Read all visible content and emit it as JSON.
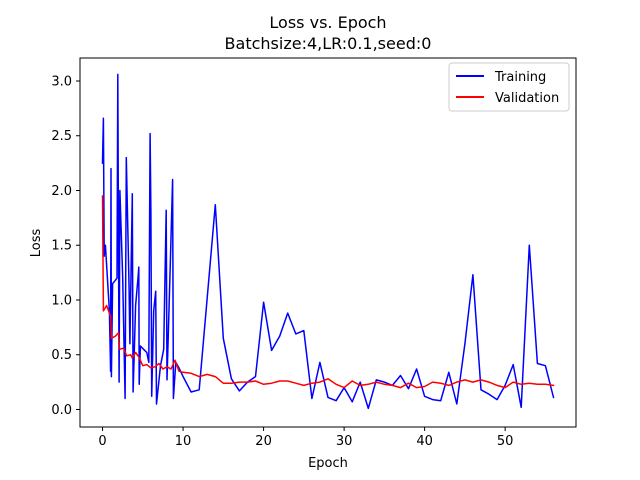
{
  "chart_data": {
    "type": "line",
    "title_line1": "Loss vs. Epoch",
    "title_line2": "Batchsize:4,LR:0.1,seed:0",
    "xlabel": "Epoch",
    "ylabel": "Loss",
    "xlim": [
      -2.8,
      58.8
    ],
    "ylim": [
      -0.16,
      3.21
    ],
    "x_ticks": [
      0,
      10,
      20,
      30,
      40,
      50
    ],
    "y_ticks": [
      0.0,
      0.5,
      1.0,
      1.5,
      2.0,
      2.5,
      3.0
    ],
    "grid": false,
    "legend_position": "top-right",
    "series": [
      {
        "name": "Training",
        "color": "#0000ff",
        "points": [
          [
            0.0,
            2.25
          ],
          [
            0.1,
            2.66
          ],
          [
            0.2,
            1.4
          ],
          [
            0.35,
            1.5
          ],
          [
            0.6,
            1.2
          ],
          [
            0.85,
            0.9
          ],
          [
            1.0,
            0.35
          ],
          [
            1.05,
            2.2
          ],
          [
            1.1,
            0.3
          ],
          [
            1.25,
            1.15
          ],
          [
            1.6,
            1.18
          ],
          [
            1.8,
            1.2
          ],
          [
            1.9,
            3.06
          ],
          [
            2.05,
            0.25
          ],
          [
            2.15,
            2.0
          ],
          [
            2.5,
            1.2
          ],
          [
            2.8,
            0.1
          ],
          [
            2.95,
            2.3
          ],
          [
            3.3,
            1.1
          ],
          [
            3.4,
            0.6
          ],
          [
            3.7,
            1.97
          ],
          [
            3.8,
            0.16
          ],
          [
            4.1,
            0.95
          ],
          [
            4.4,
            1.2
          ],
          [
            4.5,
            1.3
          ],
          [
            4.55,
            0.23
          ],
          [
            4.7,
            0.58
          ],
          [
            5.1,
            0.55
          ],
          [
            5.5,
            0.52
          ],
          [
            5.75,
            0.43
          ],
          [
            5.9,
            2.52
          ],
          [
            6.0,
            1.8
          ],
          [
            6.1,
            0.12
          ],
          [
            6.35,
            0.9
          ],
          [
            6.6,
            1.08
          ],
          [
            6.7,
            0.05
          ],
          [
            7.2,
            0.4
          ],
          [
            7.6,
            0.55
          ],
          [
            7.9,
            1.82
          ],
          [
            8.0,
            0.27
          ],
          [
            8.4,
            1.3
          ],
          [
            8.7,
            2.1
          ],
          [
            8.8,
            0.1
          ],
          [
            9.1,
            0.43
          ],
          [
            9.5,
            0.38
          ],
          [
            10.0,
            0.3
          ],
          [
            11.0,
            0.16
          ],
          [
            12.0,
            0.18
          ],
          [
            14.0,
            1.87
          ],
          [
            15.0,
            0.65
          ],
          [
            16.0,
            0.28
          ],
          [
            17.0,
            0.17
          ],
          [
            18.0,
            0.25
          ],
          [
            19.0,
            0.3
          ],
          [
            20.0,
            0.98
          ],
          [
            21.0,
            0.54
          ],
          [
            22.0,
            0.67
          ],
          [
            23.0,
            0.88
          ],
          [
            24.0,
            0.69
          ],
          [
            25.0,
            0.72
          ],
          [
            26.0,
            0.1
          ],
          [
            27.0,
            0.43
          ],
          [
            28.0,
            0.11
          ],
          [
            29.0,
            0.08
          ],
          [
            30.0,
            0.2
          ],
          [
            31.0,
            0.07
          ],
          [
            32.0,
            0.25
          ],
          [
            33.0,
            0.01
          ],
          [
            34.0,
            0.27
          ],
          [
            35.0,
            0.25
          ],
          [
            36.0,
            0.22
          ],
          [
            37.0,
            0.31
          ],
          [
            38.0,
            0.19
          ],
          [
            39.0,
            0.37
          ],
          [
            40.0,
            0.12
          ],
          [
            41.0,
            0.09
          ],
          [
            42.0,
            0.08
          ],
          [
            43.0,
            0.34
          ],
          [
            44.0,
            0.05
          ],
          [
            45.0,
            0.6
          ],
          [
            46.0,
            1.23
          ],
          [
            47.0,
            0.18
          ],
          [
            48.0,
            0.14
          ],
          [
            49.0,
            0.09
          ],
          [
            50.0,
            0.22
          ],
          [
            51.0,
            0.41
          ],
          [
            52.0,
            0.02
          ],
          [
            53.0,
            1.5
          ],
          [
            54.0,
            0.42
          ],
          [
            55.0,
            0.4
          ],
          [
            56.0,
            0.11
          ]
        ]
      },
      {
        "name": "Validation",
        "color": "#ff0000",
        "points": [
          [
            0.0,
            1.95
          ],
          [
            0.1,
            0.9
          ],
          [
            0.5,
            0.95
          ],
          [
            1.0,
            0.85
          ],
          [
            1.1,
            0.65
          ],
          [
            1.6,
            0.67
          ],
          [
            2.0,
            0.7
          ],
          [
            2.1,
            0.55
          ],
          [
            2.6,
            0.56
          ],
          [
            3.0,
            0.49
          ],
          [
            3.5,
            0.5
          ],
          [
            3.7,
            0.47
          ],
          [
            4.1,
            0.52
          ],
          [
            4.5,
            0.48
          ],
          [
            5.0,
            0.4
          ],
          [
            5.5,
            0.41
          ],
          [
            6.0,
            0.38
          ],
          [
            6.5,
            0.39
          ],
          [
            7.0,
            0.42
          ],
          [
            7.5,
            0.37
          ],
          [
            8.0,
            0.39
          ],
          [
            8.5,
            0.37
          ],
          [
            9.0,
            0.45
          ],
          [
            9.5,
            0.35
          ],
          [
            10.0,
            0.34
          ],
          [
            11.0,
            0.33
          ],
          [
            12.0,
            0.3
          ],
          [
            13.0,
            0.32
          ],
          [
            14.0,
            0.3
          ],
          [
            15.0,
            0.24
          ],
          [
            16.0,
            0.24
          ],
          [
            17.0,
            0.25
          ],
          [
            18.0,
            0.25
          ],
          [
            19.0,
            0.26
          ],
          [
            20.0,
            0.23
          ],
          [
            21.0,
            0.24
          ],
          [
            22.0,
            0.26
          ],
          [
            23.0,
            0.26
          ],
          [
            24.0,
            0.24
          ],
          [
            25.0,
            0.22
          ],
          [
            26.0,
            0.24
          ],
          [
            27.0,
            0.25
          ],
          [
            28.0,
            0.28
          ],
          [
            29.0,
            0.23
          ],
          [
            30.0,
            0.2
          ],
          [
            31.0,
            0.26
          ],
          [
            32.0,
            0.22
          ],
          [
            33.0,
            0.23
          ],
          [
            34.0,
            0.25
          ],
          [
            35.0,
            0.23
          ],
          [
            36.0,
            0.22
          ],
          [
            37.0,
            0.2
          ],
          [
            38.0,
            0.24
          ],
          [
            39.0,
            0.2
          ],
          [
            40.0,
            0.21
          ],
          [
            41.0,
            0.25
          ],
          [
            42.0,
            0.24
          ],
          [
            43.0,
            0.22
          ],
          [
            44.0,
            0.25
          ],
          [
            45.0,
            0.27
          ],
          [
            46.0,
            0.25
          ],
          [
            47.0,
            0.27
          ],
          [
            48.0,
            0.25
          ],
          [
            49.0,
            0.22
          ],
          [
            50.0,
            0.2
          ],
          [
            51.0,
            0.25
          ],
          [
            52.0,
            0.23
          ],
          [
            53.0,
            0.24
          ],
          [
            54.0,
            0.23
          ],
          [
            55.0,
            0.23
          ],
          [
            56.0,
            0.22
          ]
        ]
      }
    ]
  }
}
